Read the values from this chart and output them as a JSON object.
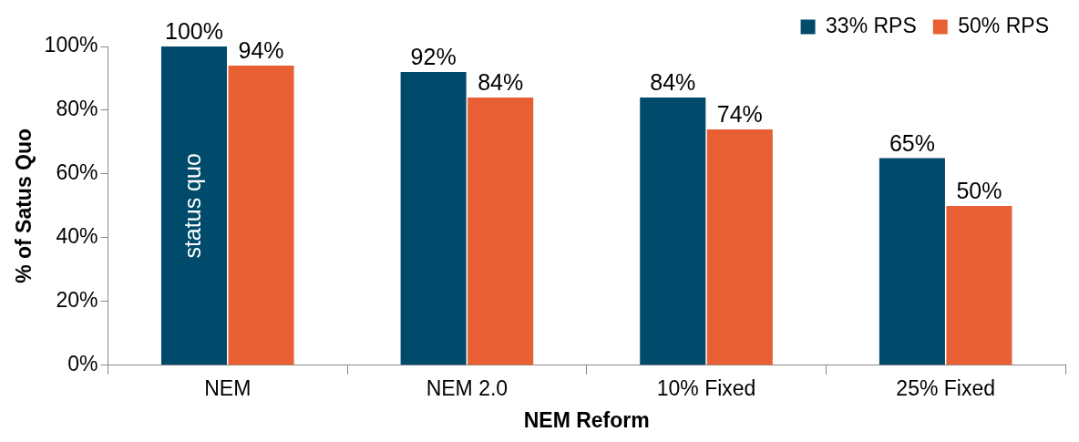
{
  "chart_data": {
    "type": "bar",
    "xlabel": "NEM Reform",
    "ylabel": "% of Satus Quo",
    "categories": [
      "NEM",
      "NEM 2.0",
      "10% Fixed",
      "25% Fixed"
    ],
    "series": [
      {
        "name": "33% RPS",
        "color": "#004b6b",
        "values": [
          100,
          92,
          84,
          65
        ],
        "value_labels": [
          "100%",
          "92%",
          "84%",
          "65%"
        ]
      },
      {
        "name": "50% RPS",
        "color": "#e85f33",
        "values": [
          94,
          84,
          74,
          50
        ],
        "value_labels": [
          "94%",
          "84%",
          "74%",
          "50%"
        ]
      }
    ],
    "ylim": [
      0,
      100
    ],
    "yticks": [
      {
        "value": 0,
        "label": "0%"
      },
      {
        "value": 20,
        "label": "20%"
      },
      {
        "value": 40,
        "label": "40%"
      },
      {
        "value": 60,
        "label": "60%"
      },
      {
        "value": 80,
        "label": "80%"
      },
      {
        "value": 100,
        "label": "100%"
      }
    ],
    "grid": false,
    "legend": "top right",
    "annotations": [
      {
        "text": "status quo",
        "x": "NEM",
        "y": 50
      }
    ]
  }
}
